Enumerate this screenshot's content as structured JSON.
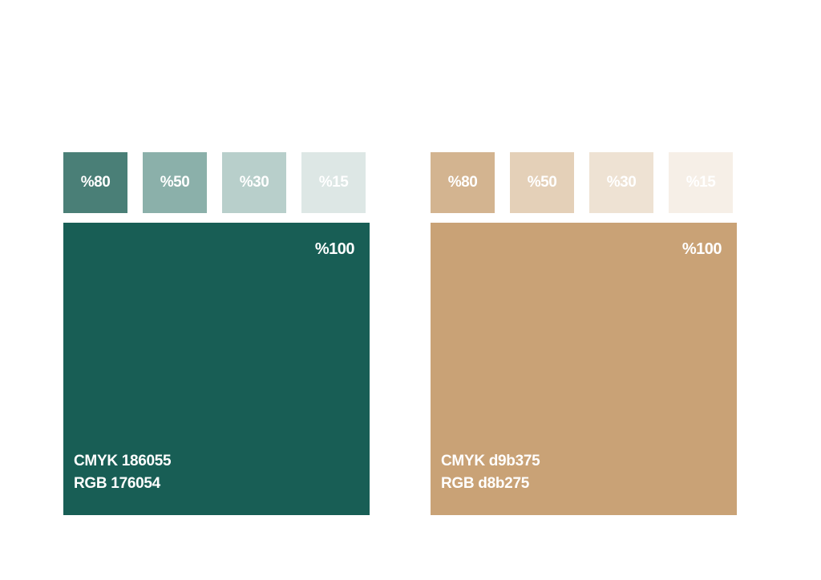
{
  "palettes": [
    {
      "id": "green",
      "main": {
        "percent_label": "%100",
        "color": "#185e55",
        "cmyk_label": "CMYK 186055",
        "rgb_label": "RGB 176054"
      },
      "tints": [
        {
          "label": "%80",
          "color": "#4a7f77"
        },
        {
          "label": "%50",
          "color": "#8bb0aa"
        },
        {
          "label": "%30",
          "color": "#b8cfcb"
        },
        {
          "label": "%15",
          "color": "#dde7e5"
        }
      ]
    },
    {
      "id": "gold",
      "main": {
        "percent_label": "%100",
        "color": "#c9a276",
        "cmyk_label": "CMYK d9b375",
        "rgb_label": "RGB d8b275"
      },
      "tints": [
        {
          "label": "%80",
          "color": "#d3b490"
        },
        {
          "label": "%50",
          "color": "#e4d0b8"
        },
        {
          "label": "%30",
          "color": "#eee2d3"
        },
        {
          "label": "%15",
          "color": "#f6efe7"
        }
      ]
    }
  ]
}
